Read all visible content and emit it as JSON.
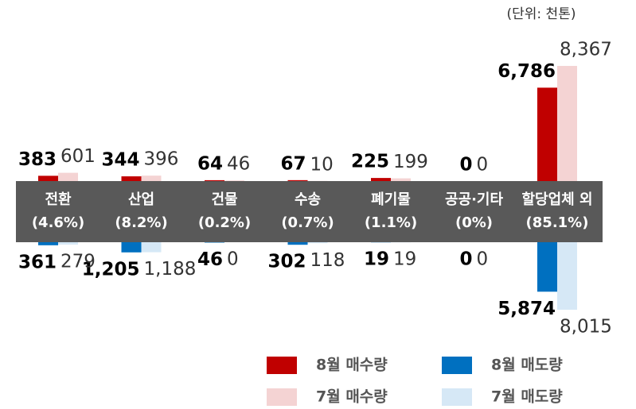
{
  "chart_data": {
    "type": "bar",
    "unit_note": "(단위: 천톤)",
    "categories": [
      "전환",
      "산업",
      "건물",
      "수송",
      "폐기물",
      "공공·기타",
      "할당업체 외"
    ],
    "category_shares": [
      "(4.6%)",
      "(8.2%)",
      "(0.2%)",
      "(0.7%)",
      "(1.1%)",
      "(0%)",
      "(85.1%)"
    ],
    "series": [
      {
        "name": "8월 매수량",
        "color": "#c00000",
        "direction": "up",
        "values": [
          383,
          344,
          64,
          67,
          225,
          0,
          6786
        ],
        "value_labels": [
          "383",
          "344",
          "64",
          "67",
          "225",
          "0",
          "6,786"
        ]
      },
      {
        "name": "7월 매수량",
        "color": "#f4d3d3",
        "direction": "up",
        "values": [
          601,
          396,
          46,
          10,
          199,
          0,
          8367
        ],
        "value_labels": [
          "601",
          "396",
          "46",
          "10",
          "199",
          "0",
          "8,367"
        ]
      },
      {
        "name": "8월 매도량",
        "color": "#0070c0",
        "direction": "down",
        "values": [
          361,
          1205,
          46,
          302,
          19,
          0,
          5874
        ],
        "value_labels": [
          "361",
          "1,205",
          "46",
          "302",
          "19",
          "0",
          "5,874"
        ]
      },
      {
        "name": "7월 매도량",
        "color": "#d6e8f6",
        "direction": "down",
        "values": [
          279,
          1188,
          0,
          118,
          19,
          0,
          8015
        ],
        "value_labels": [
          "279",
          "1,188",
          "0",
          "118",
          "19",
          "0",
          "8,015"
        ]
      }
    ]
  }
}
